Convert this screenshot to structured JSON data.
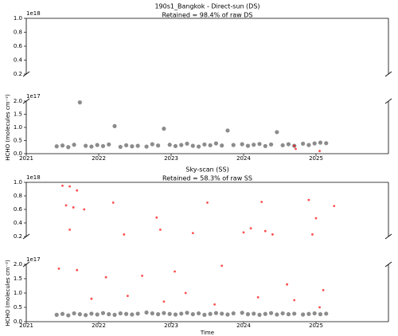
{
  "chart_data": [
    {
      "type": "scatter",
      "title": "190s1_Bangkok - Direct-sun (DS)",
      "subtitle": "Retained = 98.4% of raw DS",
      "y_label": "HCHO (molecules cm⁻²)",
      "xlim": [
        2021,
        2026
      ],
      "xticks": [
        2021,
        2022,
        2023,
        2024,
        2025
      ],
      "panels": [
        {
          "ylim": [
            2e+17,
            1e+18
          ],
          "offset_label": "1e18",
          "yticks": [
            {
              "value": 2e+17,
              "label": "0.2"
            },
            {
              "value": 4e+17,
              "label": "0.4"
            },
            {
              "value": 6e+17,
              "label": "0.6"
            },
            {
              "value": 8e+17,
              "label": "0.8"
            },
            {
              "value": 1e+18,
              "label": "1.0"
            }
          ]
        },
        {
          "ylim": [
            0,
            2e+17
          ],
          "offset_label": "1e17",
          "yticks": [
            {
              "value": 0,
              "label": "0.0"
            },
            {
              "value": 5e+16,
              "label": "0.5"
            },
            {
              "value": 1e+17,
              "label": "1.0"
            },
            {
              "value": 1.5e+17,
              "label": "1.5"
            },
            {
              "value": 2e+17,
              "label": "2.0"
            }
          ]
        }
      ],
      "series": [
        {
          "color": "#808080",
          "x": [
            2021.42,
            2021.5,
            2021.58,
            2021.66,
            2021.74,
            2021.82,
            2021.9,
            2021.98,
            2022.06,
            2022.14,
            2022.22,
            2022.3,
            2022.38,
            2022.46,
            2022.54,
            2022.66,
            2022.74,
            2022.82,
            2022.9,
            2022.98,
            2023.06,
            2023.14,
            2023.22,
            2023.3,
            2023.38,
            2023.46,
            2023.54,
            2023.62,
            2023.7,
            2023.78,
            2023.86,
            2023.98,
            2024.06,
            2024.14,
            2024.22,
            2024.3,
            2024.38,
            2024.46,
            2024.54,
            2024.62,
            2024.7,
            2024.82,
            2024.9,
            2024.98,
            2025.06,
            2025.14
          ],
          "values": [
            2.8e+16,
            3.1e+16,
            2.5e+16,
            3.4e+16,
            1.95e+17,
            3e+16,
            2.7e+16,
            3.3e+16,
            2.9e+16,
            3.5e+16,
            1.05e+17,
            2.6e+16,
            3.2e+16,
            2.8e+16,
            3e+16,
            2.7e+16,
            3.6e+16,
            3.1e+16,
            9.5e+16,
            3.4e+16,
            2.9e+16,
            3.3e+16,
            3.8e+16,
            3e+16,
            2.7e+16,
            3.5e+16,
            3.2e+16,
            3.9e+16,
            3.1e+16,
            8.8e+16,
            3.3e+16,
            3.6e+16,
            3e+16,
            3.4e+16,
            3.7e+16,
            2.9e+16,
            3.5e+16,
            8.2e+16,
            3.2e+16,
            3.6e+16,
            3e+16,
            3.8e+16,
            3.3e+16,
            3.9e+16,
            4.2e+16,
            4e+16
          ]
        },
        {
          "color": "#ff0000",
          "x": [
            2024.7,
            2024.72,
            2025.05
          ],
          "values": [
            3e+16,
            1.8e+16,
            1e+16
          ]
        }
      ]
    },
    {
      "type": "scatter",
      "title": "Sky-scan (SS)",
      "subtitle": "Retained = 58.3% of raw SS",
      "y_label": "HCHO (molecules cm⁻²)",
      "x_label": "Time",
      "xlim": [
        2021,
        2026
      ],
      "xticks": [
        2021,
        2022,
        2023,
        2024,
        2025
      ],
      "panels": [
        {
          "ylim": [
            2e+17,
            1e+18
          ],
          "offset_label": "1e18",
          "yticks": [
            {
              "value": 2e+17,
              "label": "0.2"
            },
            {
              "value": 4e+17,
              "label": "0.4"
            },
            {
              "value": 6e+17,
              "label": "0.6"
            },
            {
              "value": 8e+17,
              "label": "0.8"
            },
            {
              "value": 1e+18,
              "label": "1.0"
            }
          ]
        },
        {
          "ylim": [
            0,
            2e+17
          ],
          "offset_label": "1e17",
          "yticks": [
            {
              "value": 0,
              "label": "0.0"
            },
            {
              "value": 5e+16,
              "label": "0.5"
            },
            {
              "value": 1e+17,
              "label": "1.0"
            },
            {
              "value": 1.5e+17,
              "label": "1.5"
            },
            {
              "value": 2e+17,
              "label": "2.0"
            }
          ]
        }
      ],
      "series": [
        {
          "color": "#808080",
          "x": [
            2021.42,
            2021.5,
            2021.58,
            2021.66,
            2021.74,
            2021.82,
            2021.9,
            2021.98,
            2022.06,
            2022.14,
            2022.22,
            2022.3,
            2022.38,
            2022.46,
            2022.54,
            2022.66,
            2022.74,
            2022.82,
            2022.9,
            2022.98,
            2023.06,
            2023.14,
            2023.22,
            2023.3,
            2023.38,
            2023.46,
            2023.54,
            2023.62,
            2023.7,
            2023.78,
            2023.86,
            2023.98,
            2024.06,
            2024.14,
            2024.22,
            2024.3,
            2024.38,
            2024.46,
            2024.54,
            2024.62,
            2024.7,
            2024.82,
            2024.9,
            2024.98,
            2025.06,
            2025.14
          ],
          "values": [
            2.4e+16,
            2.7e+16,
            2.2e+16,
            2.9e+16,
            2.6e+16,
            2.3e+16,
            2.8e+16,
            2.5e+16,
            3e+16,
            2.6e+16,
            2.4e+16,
            2.9e+16,
            2.7e+16,
            2.5e+16,
            2.8e+16,
            3.2e+16,
            2.9e+16,
            2.6e+16,
            3e+16,
            2.7e+16,
            2.5e+16,
            2.8e+16,
            3.1e+16,
            2.6e+16,
            2.9e+16,
            2.4e+16,
            2.7e+16,
            3e+16,
            2.8e+16,
            2.5e+16,
            2.9e+16,
            3.1e+16,
            2.6e+16,
            2.8e+16,
            2.4e+16,
            2.7e+16,
            3e+16,
            2.5e+16,
            2.9e+16,
            2.6e+16,
            2.8e+16,
            2.5e+16,
            2.7e+16,
            2.9e+16,
            2.6e+16,
            2.8e+16
          ]
        },
        {
          "color": "#ff0000",
          "x": [
            2021.5,
            2021.6,
            2021.7,
            2021.55,
            2021.65,
            2021.8,
            2022.2,
            2021.6,
            2022.35,
            2022.8,
            2022.85,
            2023.5,
            2023.3,
            2024.0,
            2024.1,
            2024.3,
            2024.25,
            2024.4,
            2024.9,
            2025.0,
            2025.25,
            2024.95,
            2021.45,
            2021.7,
            2022.1,
            2022.6,
            2023.05,
            2023.7,
            2024.6,
            2025.1,
            2021.9,
            2022.4,
            2022.9,
            2023.2,
            2023.6,
            2024.2,
            2024.7,
            2025.05
          ],
          "values": [
            9.5e+17,
            9.4e+17,
            8.8e+17,
            6.6e+17,
            6.3e+17,
            6e+17,
            7e+17,
            3e+17,
            2.3e+17,
            4.8e+17,
            3e+17,
            7e+17,
            2.5e+17,
            2.6e+17,
            3.2e+17,
            2.8e+17,
            7.1e+17,
            2.3e+17,
            7.4e+17,
            4.7e+17,
            6.5e+17,
            2.3e+17,
            1.85e+17,
            1.8e+17,
            1.55e+17,
            1.6e+17,
            1.75e+17,
            1.95e+17,
            1.3e+17,
            1.1e+17,
            8e+16,
            9e+16,
            7e+16,
            1e+17,
            6e+16,
            8.5e+16,
            7.5e+16,
            5e+16
          ]
        }
      ]
    }
  ]
}
